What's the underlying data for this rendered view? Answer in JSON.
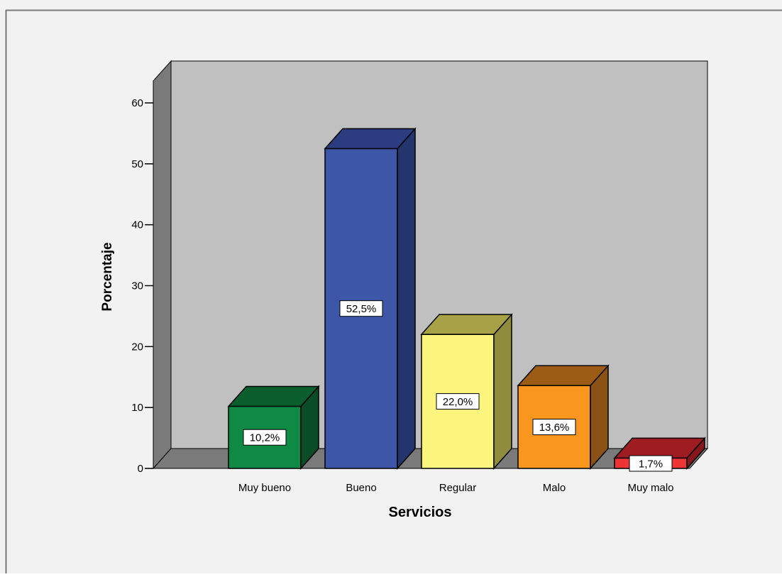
{
  "chart_data": {
    "type": "bar",
    "style": "3d",
    "xlabel": "Servicios",
    "ylabel": "Porcentaje",
    "categories": [
      "Muy bueno",
      "Bueno",
      "Regular",
      "Malo",
      "Muy malo"
    ],
    "values": [
      10.2,
      52.5,
      22.0,
      13.6,
      1.7
    ],
    "data_labels": [
      "10,2%",
      "52,5%",
      "22,0%",
      "13,6%",
      "1,7%"
    ],
    "ylim": [
      0,
      60
    ],
    "yticks": [
      0,
      10,
      20,
      30,
      40,
      50,
      60
    ],
    "grid": false,
    "legend": "none",
    "colors": {
      "bars": [
        {
          "front": "#0f8a44",
          "top": "#0b5e2e",
          "side": "#0a4d26"
        },
        {
          "front": "#3d56a8",
          "top": "#2b3d80",
          "side": "#24346c"
        },
        {
          "front": "#fbf57e",
          "top": "#a8a247",
          "side": "#908c3e"
        },
        {
          "front": "#f8961e",
          "top": "#9c5c16",
          "side": "#8a5214"
        },
        {
          "front": "#ee3535",
          "top": "#9e1d22",
          "side": "#86181c"
        }
      ],
      "background": "#f2f2f2",
      "plot_back": "#c0c0c0",
      "plot_floor": "#7a7a7a",
      "plot_wall": "#7a7a7a"
    }
  }
}
